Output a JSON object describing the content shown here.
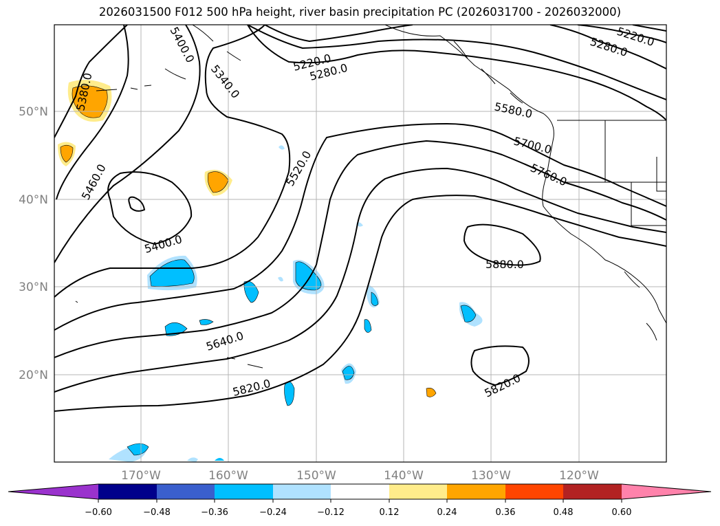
{
  "title": "2026031500 F012 500 hPa height, river basin precipitation PC (2026031700 - 2026032000)",
  "lat_labels": [
    "50°N",
    "40°N",
    "30°N",
    "20°N"
  ],
  "lon_labels": [
    "170°W",
    "160°W",
    "150°W",
    "140°W",
    "130°W",
    "120°W"
  ],
  "contour_labels": [
    "5220.0",
    "5280.0",
    "5340.0",
    "5400.0",
    "5460.0",
    "5520.0",
    "5580.0",
    "5640.0",
    "5700.0",
    "5760.0",
    "5820.0",
    "5880.0",
    "5220.0",
    "5280.0",
    "5400.0",
    "5380.0",
    "5820.0"
  ],
  "colorbar": {
    "ticks": [
      "−0.60",
      "−0.48",
      "−0.36",
      "−0.24",
      "−0.12",
      "0.12",
      "0.24",
      "0.36",
      "0.48",
      "0.60"
    ],
    "colors": [
      "#9a32cd",
      "#00008b",
      "#3a5fcd",
      "#00bfff",
      "#b0e2ff",
      "#ffffff",
      "#ffec8b",
      "#ffa500",
      "#ff4500",
      "#b22222",
      "#ff82ab"
    ]
  }
}
